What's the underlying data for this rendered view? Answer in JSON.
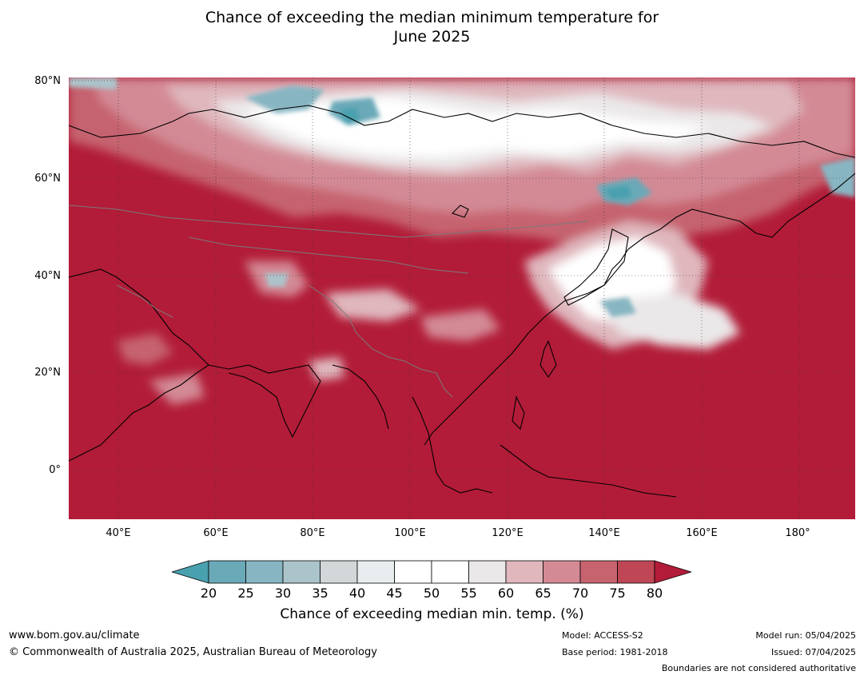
{
  "title_line1": "Chance of exceeding the median minimum temperature for",
  "title_line2": "June 2025",
  "lat_labels": [
    "80°N",
    "60°N",
    "40°N",
    "20°N",
    "0°"
  ],
  "lon_labels": [
    "40°E",
    "60°E",
    "80°E",
    "100°E",
    "120°E",
    "140°E",
    "160°E",
    "180°"
  ],
  "colorbar": {
    "ticks": [
      "20",
      "25",
      "30",
      "35",
      "40",
      "45",
      "50",
      "55",
      "60",
      "65",
      "70",
      "75",
      "80"
    ],
    "colors": [
      "#49a0af",
      "#6aa9b8",
      "#87b6c2",
      "#abc4ca",
      "#d2d8da",
      "#e8eef0",
      "#ffffff",
      "#ffffff",
      "#ebe8e9",
      "#dfb7bd",
      "#d38a95",
      "#c6636f",
      "#be4655",
      "#b21c38"
    ],
    "title": "Chance of exceeding median min. temp. (%)"
  },
  "footer": {
    "website": "www.bom.gov.au/climate",
    "copyright": "© Commonwealth of Australia 2025, Australian Bureau of Meteorology",
    "model": "Model: ACCESS-S2",
    "base_period": "Base period: 1981-2018",
    "model_run": "Model run: 05/04/2025",
    "issued": "Issued: 07/04/2025",
    "disclaimer": "Boundaries are not considered authoritative"
  }
}
